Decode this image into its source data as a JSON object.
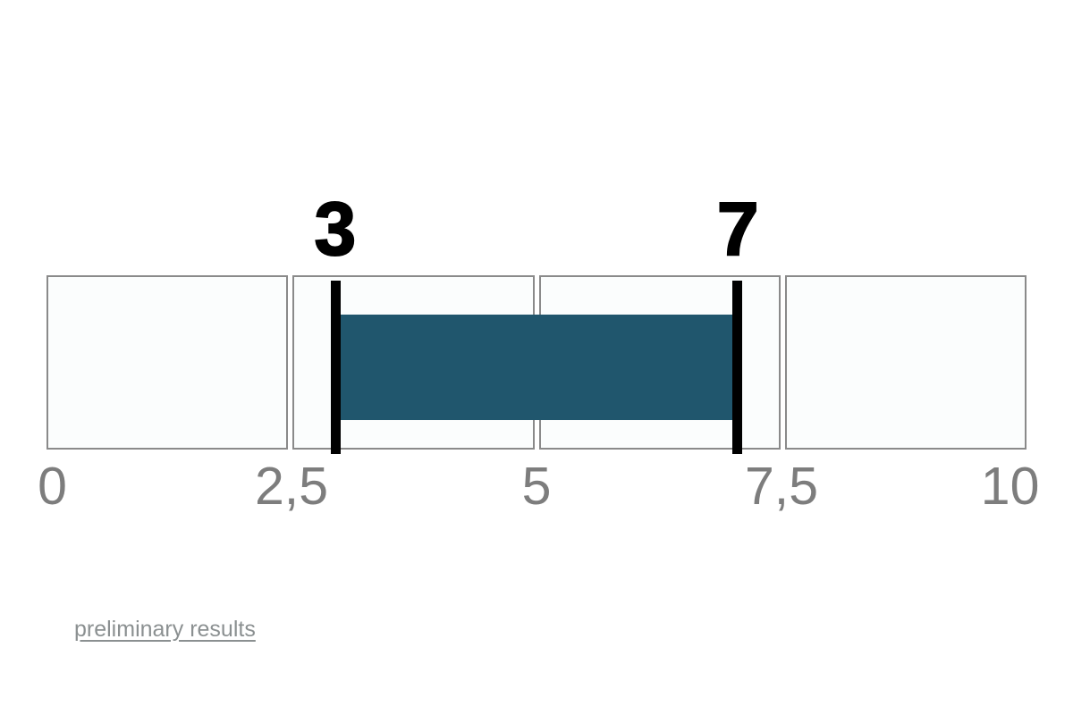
{
  "chart_data": {
    "type": "bar",
    "subtype": "horizontal-range",
    "title": "",
    "xlabel": "",
    "ylabel": "",
    "axis": {
      "min": 0,
      "max": 10,
      "decimal_separator": ",",
      "ticks": [
        {
          "label": "0",
          "value": 0
        },
        {
          "label": "2,5",
          "value": 2.5
        },
        {
          "label": "5",
          "value": 5
        },
        {
          "label": "7,5",
          "value": 7.5
        },
        {
          "label": "10",
          "value": 10
        }
      ]
    },
    "segments": 4,
    "range": {
      "min": 3,
      "max": 7,
      "min_label": "3",
      "max_label": "7"
    },
    "grid": false,
    "legend": false,
    "colors": {
      "bar": "#20566d",
      "marker": "#000000",
      "range_label_text": "#000000",
      "cell_fill": "#fbfdfd",
      "cell_border": "#8a8a8a",
      "tick_text": "#7d7d7d",
      "link_text": "#8b9091",
      "page_background": "#ffffff"
    }
  },
  "footer": {
    "link_label": "preliminary results"
  }
}
